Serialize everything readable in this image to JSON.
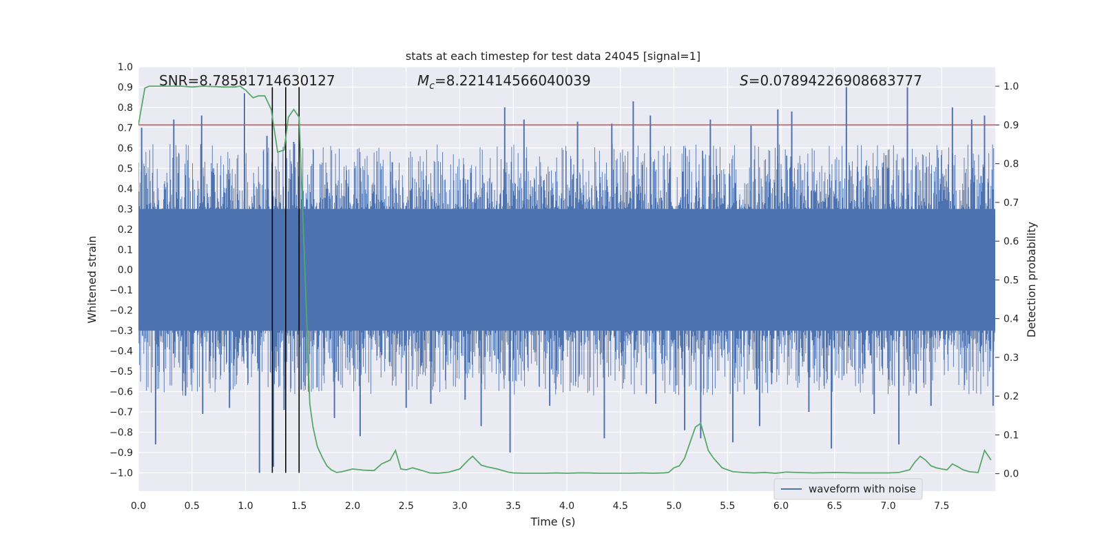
{
  "chart_data": {
    "type": "line",
    "title": "stats at each timestep for test data 24045 [signal=1]",
    "xlabel": "Time (s)",
    "ylabel": "Whitened strain",
    "y2label": "Detection probability",
    "xlim": [
      0.0,
      8.0
    ],
    "ylim": [
      -1.09,
      1.0
    ],
    "y2lim": [
      -0.045,
      1.05
    ],
    "xticks": [
      "0.0",
      "0.5",
      "1.0",
      "1.5",
      "2.0",
      "2.5",
      "3.0",
      "3.5",
      "4.0",
      "4.5",
      "5.0",
      "5.5",
      "6.0",
      "6.5",
      "7.0",
      "7.5"
    ],
    "xtick_values": [
      0.0,
      0.5,
      1.0,
      1.5,
      2.0,
      2.5,
      3.0,
      3.5,
      4.0,
      4.5,
      5.0,
      5.5,
      6.0,
      6.5,
      7.0,
      7.5
    ],
    "yticks": [
      "1.0",
      "0.9",
      "0.8",
      "0.7",
      "0.6",
      "0.5",
      "0.4",
      "0.3",
      "0.2",
      "0.1",
      "0.0",
      "−0.1",
      "−0.2",
      "−0.3",
      "−0.4",
      "−0.5",
      "−0.6",
      "−0.7",
      "−0.8",
      "−0.9",
      "−1.0"
    ],
    "ytick_values": [
      1.0,
      0.9,
      0.8,
      0.7,
      0.6,
      0.5,
      0.4,
      0.3,
      0.2,
      0.1,
      0.0,
      -0.1,
      -0.2,
      -0.3,
      -0.4,
      -0.5,
      -0.6,
      -0.7,
      -0.8,
      -0.9,
      -1.0
    ],
    "y2ticks": [
      "1.0",
      "0.9",
      "0.8",
      "0.7",
      "0.6",
      "0.5",
      "0.4",
      "0.3",
      "0.2",
      "0.1",
      "0.0"
    ],
    "y2tick_values": [
      1.0,
      0.9,
      0.8,
      0.7,
      0.6,
      0.5,
      0.4,
      0.3,
      0.2,
      0.1,
      0.0
    ],
    "annotations": {
      "snr": "SNR=8.78581714630127",
      "mc_prefix": "M",
      "mc_sub": "c",
      "mc_value": "=8.221414566040039",
      "s_prefix": "S",
      "s_value": "=0.07894226908683777"
    },
    "legend": {
      "label": "waveform with noise",
      "placement": "lower-right"
    },
    "threshold": {
      "value": 0.9,
      "axis": "y2",
      "color": "#c44e52"
    },
    "event_markers": {
      "x": [
        1.25,
        1.375,
        1.5
      ],
      "y_range": [
        -1.0,
        0.9
      ],
      "color": "#000000"
    },
    "waveform": {
      "name": "waveform with noise",
      "color": "#4c72b0",
      "envelope": 0.3,
      "peaks": [
        {
          "x": 0.03,
          "y": 0.7
        },
        {
          "x": 0.16,
          "y": -0.86
        },
        {
          "x": 0.33,
          "y": 0.74
        },
        {
          "x": 0.44,
          "y": -0.62
        },
        {
          "x": 0.59,
          "y": 0.76
        },
        {
          "x": 0.6,
          "y": -0.71
        },
        {
          "x": 0.85,
          "y": -0.68
        },
        {
          "x": 0.99,
          "y": 0.87
        },
        {
          "x": 1.13,
          "y": -1.0
        },
        {
          "x": 1.2,
          "y": 0.66
        },
        {
          "x": 1.26,
          "y": -0.97
        },
        {
          "x": 1.36,
          "y": -0.69
        },
        {
          "x": 1.45,
          "y": 0.63
        },
        {
          "x": 1.52,
          "y": -0.59
        },
        {
          "x": 1.83,
          "y": -0.73
        },
        {
          "x": 2.07,
          "y": -0.82
        },
        {
          "x": 2.37,
          "y": 0.53
        },
        {
          "x": 2.5,
          "y": -0.68
        },
        {
          "x": 2.73,
          "y": -0.66
        },
        {
          "x": 3.05,
          "y": -0.64
        },
        {
          "x": 3.2,
          "y": -0.77
        },
        {
          "x": 3.42,
          "y": 0.8
        },
        {
          "x": 3.47,
          "y": -0.9
        },
        {
          "x": 3.6,
          "y": 0.74
        },
        {
          "x": 3.84,
          "y": -0.67
        },
        {
          "x": 4.1,
          "y": 0.73
        },
        {
          "x": 4.35,
          "y": -0.83
        },
        {
          "x": 4.42,
          "y": 0.72
        },
        {
          "x": 4.62,
          "y": 0.83
        },
        {
          "x": 4.78,
          "y": 0.76
        },
        {
          "x": 4.83,
          "y": -0.66
        },
        {
          "x": 5.1,
          "y": -0.79
        },
        {
          "x": 5.25,
          "y": -0.83
        },
        {
          "x": 5.34,
          "y": 0.74
        },
        {
          "x": 5.55,
          "y": -0.85
        },
        {
          "x": 5.72,
          "y": 0.71
        },
        {
          "x": 5.8,
          "y": -0.77
        },
        {
          "x": 5.97,
          "y": 0.79
        },
        {
          "x": 6.1,
          "y": 0.78
        },
        {
          "x": 6.26,
          "y": -0.7
        },
        {
          "x": 6.47,
          "y": -0.88
        },
        {
          "x": 6.61,
          "y": 0.9
        },
        {
          "x": 6.87,
          "y": -0.71
        },
        {
          "x": 7.1,
          "y": -0.86
        },
        {
          "x": 7.18,
          "y": 0.9
        },
        {
          "x": 7.4,
          "y": -0.67
        },
        {
          "x": 7.6,
          "y": 0.8
        },
        {
          "x": 7.78,
          "y": 0.74
        },
        {
          "x": 7.9,
          "y": 0.76
        },
        {
          "x": 7.98,
          "y": -0.67
        }
      ]
    },
    "detection_probability": {
      "name": "Detection probability",
      "color": "#55a868",
      "x": [
        0.0,
        0.06,
        0.1,
        0.2,
        0.3,
        0.4,
        0.5,
        0.6,
        0.7,
        0.8,
        0.9,
        0.95,
        1.0,
        1.07,
        1.12,
        1.18,
        1.24,
        1.3,
        1.36,
        1.4,
        1.45,
        1.5,
        1.55,
        1.6,
        1.63,
        1.67,
        1.72,
        1.76,
        1.8,
        1.85,
        1.9,
        2.0,
        2.1,
        2.2,
        2.27,
        2.35,
        2.4,
        2.45,
        2.5,
        2.56,
        2.65,
        2.72,
        2.8,
        2.9,
        3.0,
        3.08,
        3.12,
        3.2,
        3.25,
        3.35,
        3.45,
        3.5,
        3.6,
        3.7,
        3.8,
        3.9,
        4.0,
        4.1,
        4.2,
        4.3,
        4.4,
        4.5,
        4.6,
        4.7,
        4.8,
        4.9,
        4.95,
        5.0,
        5.05,
        5.1,
        5.15,
        5.2,
        5.25,
        5.32,
        5.37,
        5.45,
        5.55,
        5.65,
        5.75,
        5.85,
        5.95,
        6.05,
        6.15,
        6.3,
        6.5,
        6.7,
        6.9,
        7.0,
        7.1,
        7.2,
        7.25,
        7.3,
        7.35,
        7.4,
        7.45,
        7.5,
        7.55,
        7.6,
        7.65,
        7.7,
        7.76,
        7.84,
        7.9,
        7.96
      ],
      "y": [
        0.9,
        0.995,
        1.0,
        1.0,
        1.0,
        1.0,
        0.998,
        1.0,
        0.999,
        0.998,
        0.998,
        1.0,
        0.99,
        0.97,
        0.975,
        0.975,
        0.94,
        0.83,
        0.835,
        0.92,
        0.94,
        0.92,
        0.56,
        0.18,
        0.12,
        0.07,
        0.04,
        0.02,
        0.01,
        0.003,
        0.005,
        0.012,
        0.009,
        0.008,
        0.025,
        0.035,
        0.06,
        0.012,
        0.01,
        0.015,
        0.008,
        0.002,
        0.001,
        0.004,
        0.012,
        0.035,
        0.045,
        0.022,
        0.018,
        0.012,
        0.004,
        0.002,
        0.001,
        0.001,
        0.001,
        0.002,
        0.001,
        0.002,
        0.002,
        0.001,
        0.001,
        0.001,
        0.001,
        0.002,
        0.001,
        0.002,
        0.003,
        0.015,
        0.02,
        0.04,
        0.08,
        0.12,
        0.13,
        0.06,
        0.04,
        0.015,
        0.005,
        0.003,
        0.002,
        0.003,
        0.001,
        0.004,
        0.003,
        0.002,
        0.003,
        0.002,
        0.002,
        0.002,
        0.003,
        0.01,
        0.03,
        0.045,
        0.035,
        0.02,
        0.015,
        0.012,
        0.01,
        0.025,
        0.018,
        0.01,
        0.005,
        0.003,
        0.06,
        0.035
      ]
    }
  }
}
